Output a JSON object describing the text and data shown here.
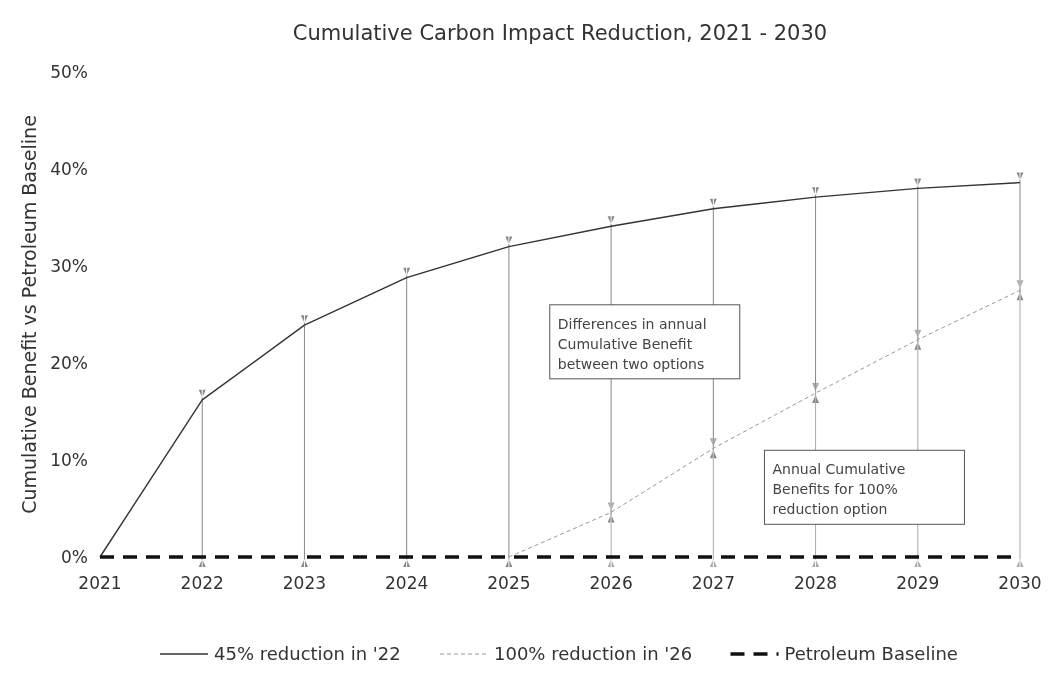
{
  "chart_data": {
    "type": "line",
    "title": "Cumulative Carbon Impact Reduction, 2021 - 2030",
    "ylabel": "Cumulative Benefit vs Petroleum Baseline",
    "x": [
      2021,
      2022,
      2023,
      2024,
      2025,
      2026,
      2027,
      2028,
      2029,
      2030
    ],
    "xlim": [
      2021,
      2030
    ],
    "xticks": [
      2021,
      2022,
      2023,
      2024,
      2025,
      2026,
      2027,
      2028,
      2029,
      2030
    ],
    "ylim": [
      0,
      50
    ],
    "yticks": [
      {
        "value": 0,
        "label": "0%"
      },
      {
        "value": 10,
        "label": "10%"
      },
      {
        "value": 20,
        "label": "20%"
      },
      {
        "value": 30,
        "label": "30%"
      },
      {
        "value": 40,
        "label": "40%"
      },
      {
        "value": 50,
        "label": "50%"
      }
    ],
    "series": [
      {
        "name": "45% reduction in '22",
        "color": "#333333",
        "line_style": "solid",
        "values": [
          0,
          16.2,
          23.9,
          28.8,
          32.0,
          34.1,
          35.9,
          37.1,
          38.0,
          38.6
        ]
      },
      {
        "name": "100% reduction in '26",
        "color": "#999999",
        "line_style": "dotted",
        "values": [
          null,
          null,
          null,
          null,
          0,
          4.6,
          11.2,
          16.9,
          22.4,
          27.5
        ]
      },
      {
        "name": "Petroleum Baseline",
        "color": "#111111",
        "line_style": "dashed",
        "values": [
          0,
          0,
          0,
          0,
          0,
          0,
          0,
          0,
          0,
          0
        ]
      }
    ],
    "annotations": [
      "Differences in annual Cumulative Benefit between two options",
      "Annual Cumulative Benefits for 100% reduction option"
    ],
    "legend": "bottom",
    "grid": false
  }
}
